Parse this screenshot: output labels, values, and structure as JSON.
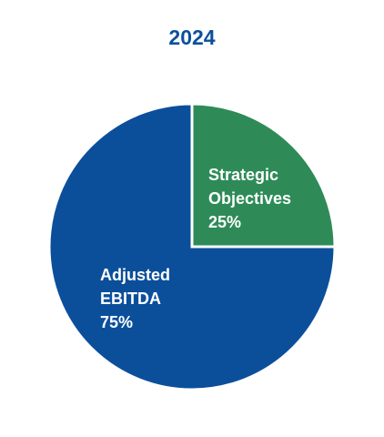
{
  "chart_data": {
    "type": "pie",
    "title": "2024",
    "categories": [
      "Strategic Objectives",
      "Adjusted EBITDA"
    ],
    "values": [
      25,
      75
    ],
    "value_labels": [
      "25%",
      "75%"
    ],
    "colors": [
      "#2e8b57",
      "#0b4f9b"
    ]
  }
}
